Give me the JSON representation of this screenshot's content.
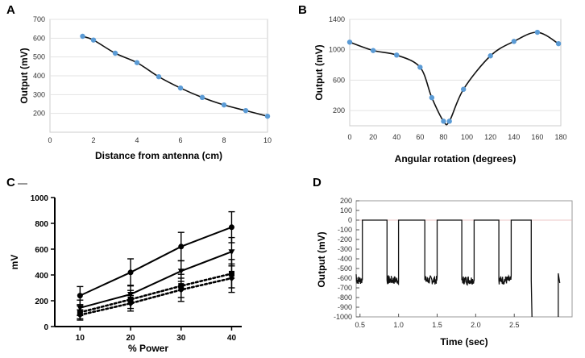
{
  "chart_data": [
    {
      "panel": "A",
      "type": "line",
      "xlabel": "Distance from antenna (cm)",
      "ylabel": "Output (mV)",
      "xlim": [
        0,
        10
      ],
      "ylim": [
        100,
        700
      ],
      "xticks": [
        0,
        2,
        4,
        6,
        8,
        10
      ],
      "yticks": [
        200,
        300,
        400,
        500,
        600,
        700
      ],
      "x": [
        1.5,
        2,
        3,
        4,
        5,
        6,
        7,
        8,
        9,
        10
      ],
      "y": [
        610,
        590,
        520,
        470,
        395,
        335,
        285,
        245,
        215,
        185
      ],
      "grid": true,
      "marker_color": "#5b9bd5"
    },
    {
      "panel": "B",
      "type": "line",
      "xlabel": "Angular rotation (degrees)",
      "ylabel": "Output (mV)",
      "xlim": [
        0,
        180
      ],
      "ylim": [
        0,
        1400
      ],
      "xticks": [
        0,
        20,
        40,
        60,
        80,
        100,
        120,
        140,
        160,
        180
      ],
      "yticks": [
        200,
        600,
        1000,
        1400
      ],
      "x": [
        0,
        20,
        40,
        60,
        70,
        80,
        85,
        97,
        120,
        140,
        160,
        178
      ],
      "y": [
        1100,
        990,
        930,
        770,
        370,
        60,
        60,
        480,
        920,
        1110,
        1230,
        1080
      ],
      "grid": true,
      "marker_color": "#5b9bd5"
    },
    {
      "panel": "C",
      "type": "line",
      "xlabel": "% Power",
      "ylabel": "mV",
      "xlim": [
        5,
        42
      ],
      "ylim": [
        0,
        1000
      ],
      "xticks": [
        10,
        20,
        30,
        40
      ],
      "yticks": [
        0,
        200,
        400,
        600,
        800,
        1000
      ],
      "categories": [
        10,
        20,
        30,
        40
      ],
      "series": [
        {
          "name": "circle-solid",
          "values": [
            240,
            420,
            620,
            770
          ],
          "err": [
            70,
            105,
            110,
            120
          ],
          "style": "solid",
          "marker": "circle"
        },
        {
          "name": "triangle-solid",
          "values": [
            145,
            250,
            430,
            580
          ],
          "err": [
            60,
            70,
            80,
            110
          ],
          "style": "solid",
          "marker": "triangle"
        },
        {
          "name": "square-dotted",
          "values": [
            110,
            210,
            315,
            410
          ],
          "err": [
            50,
            70,
            90,
            110
          ],
          "style": "dotted",
          "marker": "square"
        },
        {
          "name": "diamond-dotted",
          "values": [
            90,
            180,
            285,
            375
          ],
          "err": [
            40,
            60,
            90,
            110
          ],
          "style": "dotted",
          "marker": "diamond"
        }
      ],
      "grid": false
    },
    {
      "panel": "D",
      "type": "line",
      "xlabel": "Time (sec)",
      "ylabel": "Output (mV)",
      "xlim": [
        0.45,
        3.25
      ],
      "ylim": [
        -1000,
        200
      ],
      "xticks": [
        0.5,
        1.0,
        1.5,
        2.0,
        2.5
      ],
      "xtick_labels": [
        "0.5",
        "1.0",
        "1.5",
        "2.0",
        "2.5"
      ],
      "yticks": [
        -1000,
        -900,
        -800,
        -700,
        -600,
        -500,
        -400,
        -300,
        -200,
        -100,
        0,
        100,
        200
      ],
      "pulses_high": [
        [
          0.53,
          0.85
        ],
        [
          1.0,
          1.34
        ],
        [
          1.5,
          1.82
        ],
        [
          1.98,
          2.3
        ],
        [
          2.46,
          2.72
        ]
      ],
      "baseline_high": 0,
      "noisy_low": -620,
      "drop_time": 2.73,
      "drop_value": -1000,
      "recovery": [
        [
          3.07,
          -1000
        ],
        [
          3.07,
          -550
        ],
        [
          3.09,
          -650
        ]
      ],
      "grid": false
    }
  ],
  "panels": {
    "A": {
      "letter": "A"
    },
    "B": {
      "letter": "B"
    },
    "C": {
      "letter": "C"
    },
    "D": {
      "letter": "D"
    }
  }
}
